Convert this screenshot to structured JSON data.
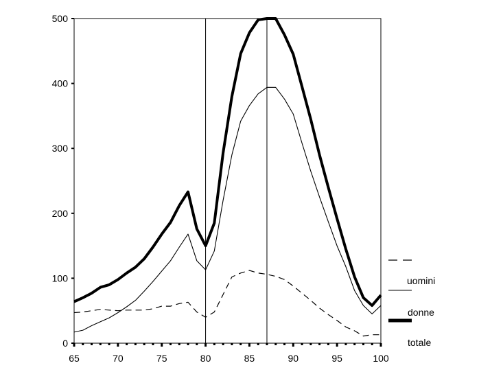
{
  "chart_data": {
    "type": "line",
    "x_ticks": [
      "65",
      "70",
      "75",
      "80",
      "85",
      "90",
      "95",
      "100"
    ],
    "y_ticks": [
      "0",
      "100",
      "200",
      "300",
      "400",
      "500"
    ],
    "xlim": [
      65,
      100
    ],
    "ylim": [
      0,
      500
    ],
    "vlines": [
      80,
      87
    ],
    "legend_position": "right",
    "legend_labels": [
      "uomini",
      "donne",
      "totale"
    ],
    "series": [
      {
        "name": "uomini",
        "style": "dashed",
        "x": [
          65,
          66,
          67,
          68,
          69,
          70,
          71,
          72,
          73,
          74,
          75,
          76,
          77,
          78,
          79,
          80,
          81,
          82,
          83,
          84,
          85,
          86,
          87,
          88,
          89,
          90,
          91,
          92,
          93,
          94,
          95,
          96,
          97,
          98,
          99,
          100
        ],
        "values": [
          47,
          48,
          50,
          52,
          51,
          50,
          51,
          51,
          51,
          53,
          57,
          57,
          61,
          63,
          48,
          40,
          48,
          75,
          102,
          108,
          112,
          108,
          106,
          103,
          98,
          88,
          77,
          66,
          54,
          44,
          35,
          25,
          19,
          11,
          13,
          13
        ]
      },
      {
        "name": "donne",
        "style": "thin",
        "x": [
          65,
          66,
          67,
          68,
          69,
          70,
          71,
          72,
          73,
          74,
          75,
          76,
          77,
          78,
          79,
          80,
          81,
          82,
          83,
          84,
          85,
          86,
          87,
          88,
          89,
          90,
          91,
          92,
          93,
          94,
          95,
          96,
          97,
          98,
          99,
          100
        ],
        "values": [
          17,
          20,
          27,
          33,
          39,
          47,
          56,
          66,
          80,
          95,
          111,
          127,
          148,
          168,
          127,
          113,
          142,
          220,
          290,
          342,
          366,
          384,
          394,
          394,
          376,
          353,
          308,
          265,
          225,
          187,
          150,
          118,
          81,
          58,
          45,
          58
        ]
      },
      {
        "name": "totale",
        "style": "thick",
        "x": [
          65,
          66,
          67,
          68,
          69,
          70,
          71,
          72,
          73,
          74,
          75,
          76,
          77,
          78,
          79,
          80,
          81,
          82,
          83,
          84,
          85,
          86,
          87,
          88,
          89,
          90,
          91,
          92,
          93,
          94,
          95,
          96,
          97,
          98,
          99,
          100
        ],
        "values": [
          64,
          70,
          77,
          86,
          90,
          98,
          108,
          117,
          130,
          148,
          168,
          186,
          212,
          233,
          176,
          150,
          185,
          293,
          380,
          446,
          478,
          498,
          500,
          500,
          475,
          445,
          395,
          345,
          290,
          240,
          192,
          145,
          102,
          70,
          58,
          74
        ]
      }
    ]
  }
}
